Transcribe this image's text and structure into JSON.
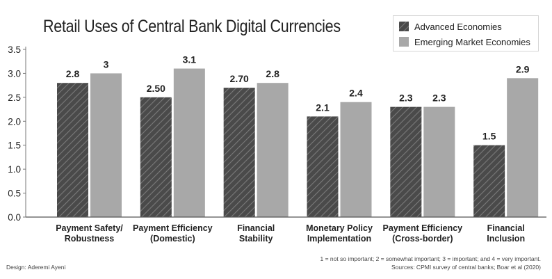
{
  "chart_data": {
    "type": "bar",
    "title": "Retail Uses of Central Bank Digital Currencies",
    "categories": [
      [
        "Payment Safety/",
        "Robustness"
      ],
      [
        "Payment Efficiency",
        "(Domestic)"
      ],
      [
        "Financial",
        "Stability"
      ],
      [
        "Monetary Policy",
        "Implementation"
      ],
      [
        "Payment Efficiency",
        "(Cross-border)"
      ],
      [
        "Financial",
        "Inclusion"
      ]
    ],
    "series": [
      {
        "name": "Advanced Economies",
        "values": [
          2.8,
          2.5,
          2.7,
          2.1,
          2.3,
          1.5
        ],
        "labels": [
          "2.8",
          "2.50",
          "2.70",
          "2.1",
          "2.3",
          "1.5"
        ],
        "color": "#4a4a4a",
        "pattern": "diagonal-hatch"
      },
      {
        "name": "Emerging Market Economies",
        "values": [
          3.0,
          3.1,
          2.8,
          2.4,
          2.3,
          2.9
        ],
        "labels": [
          "3",
          "3.1",
          "2.8",
          "2.4",
          "2.3",
          "2.9"
        ],
        "color": "#a8a8a8",
        "pattern": "solid"
      }
    ],
    "xlabel": "",
    "ylabel": "",
    "ylim": [
      0,
      3.5
    ],
    "yticks": [
      "0.0",
      "0.5",
      "1.0",
      "1.5",
      "2.0",
      "2.5",
      "3.0",
      "3.5"
    ],
    "grid": false,
    "legend": "top-right"
  },
  "footer": {
    "design_credit": "Design: Aderemi Ayeni",
    "scale_note": "1 = not so important; 2 = somewhat important; 3 = important; and 4 = very important.",
    "sources": "Sources: CPMI survey of central banks; Boar et al (2020)"
  }
}
